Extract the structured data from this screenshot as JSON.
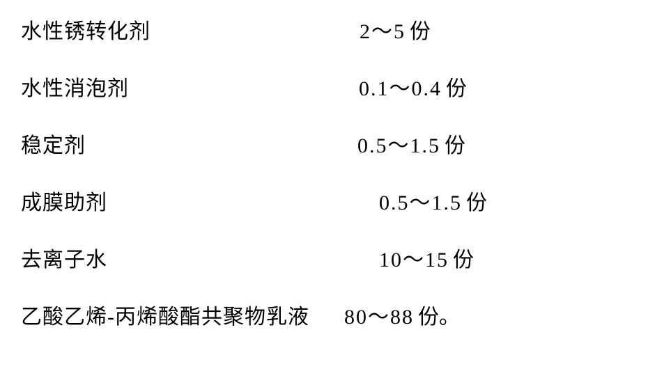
{
  "rows": [
    {
      "label": "水性锈转化剂",
      "value": "2～5",
      "unit": "份",
      "spacer": "spacer-a"
    },
    {
      "label": "水性消泡剂",
      "value": "0.1～0.4",
      "unit": "份",
      "spacer": "spacer-b"
    },
    {
      "label": "稳定剂",
      "value": "0.5～1.5",
      "unit": "份",
      "spacer": "spacer-c"
    },
    {
      "label": "成膜助剂",
      "value": "0.5～1.5",
      "unit": "份",
      "spacer": "spacer-c"
    },
    {
      "label": "去离子水",
      "value": "10～15",
      "unit": "份",
      "spacer": "spacer-c"
    },
    {
      "label": "乙酸乙烯-丙烯酸酯共聚物乳液",
      "value": "80～88",
      "unit": "份。",
      "spacer": "spacer-last"
    }
  ]
}
